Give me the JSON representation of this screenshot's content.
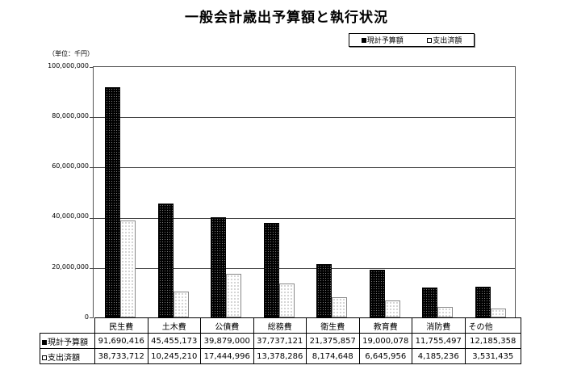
{
  "title": "一般会計歳出予算額と執行状況",
  "unit_label": "（単位：千円）",
  "legend": [
    {
      "label": "現計予算額",
      "style": "dark"
    },
    {
      "label": "支出済額",
      "style": "light"
    }
  ],
  "y_ticks": [
    "100,000,000",
    "80,000,000",
    "60,000,000",
    "40,000,000",
    "20,000,000",
    "0"
  ],
  "table": {
    "headers": [
      "民生費",
      "土木費",
      "公債費",
      "総務費",
      "衛生費",
      "教育費",
      "消防費",
      "その他"
    ],
    "rows": [
      {
        "label": "現計予算額",
        "marker": "dark",
        "values": [
          "91,690,416",
          "45,455,173",
          "39,879,000",
          "37,737,121",
          "21,375,857",
          "19,000,078",
          "11,755,497",
          "12,185,358"
        ]
      },
      {
        "label": "支出済額",
        "marker": "light",
        "values": [
          "38,733,712",
          "10,245,210",
          "17,444,996",
          "13,378,286",
          "8,174,648",
          "6,645,956",
          "4,185,236",
          "3,531,435"
        ]
      }
    ]
  },
  "chart_data": {
    "type": "bar",
    "title": "一般会計歳出予算額と執行状況",
    "ylabel": "（単位：千円）",
    "xlabel": "",
    "categories": [
      "民生費",
      "土木費",
      "公債費",
      "総務費",
      "衛生費",
      "教育費",
      "消防費",
      "その他"
    ],
    "series": [
      {
        "name": "現計予算額",
        "values": [
          91690416,
          45455173,
          39879000,
          37737121,
          21375857,
          19000078,
          11755497,
          12185358
        ]
      },
      {
        "name": "支出済額",
        "values": [
          38733712,
          10245210,
          17444996,
          13378286,
          8174648,
          6645956,
          4185236,
          3531435
        ]
      }
    ],
    "ylim": [
      0,
      100000000
    ],
    "yticks": [
      0,
      20000000,
      40000000,
      60000000,
      80000000,
      100000000
    ],
    "grid": true,
    "legend_position": "top-right",
    "data_table": true
  }
}
